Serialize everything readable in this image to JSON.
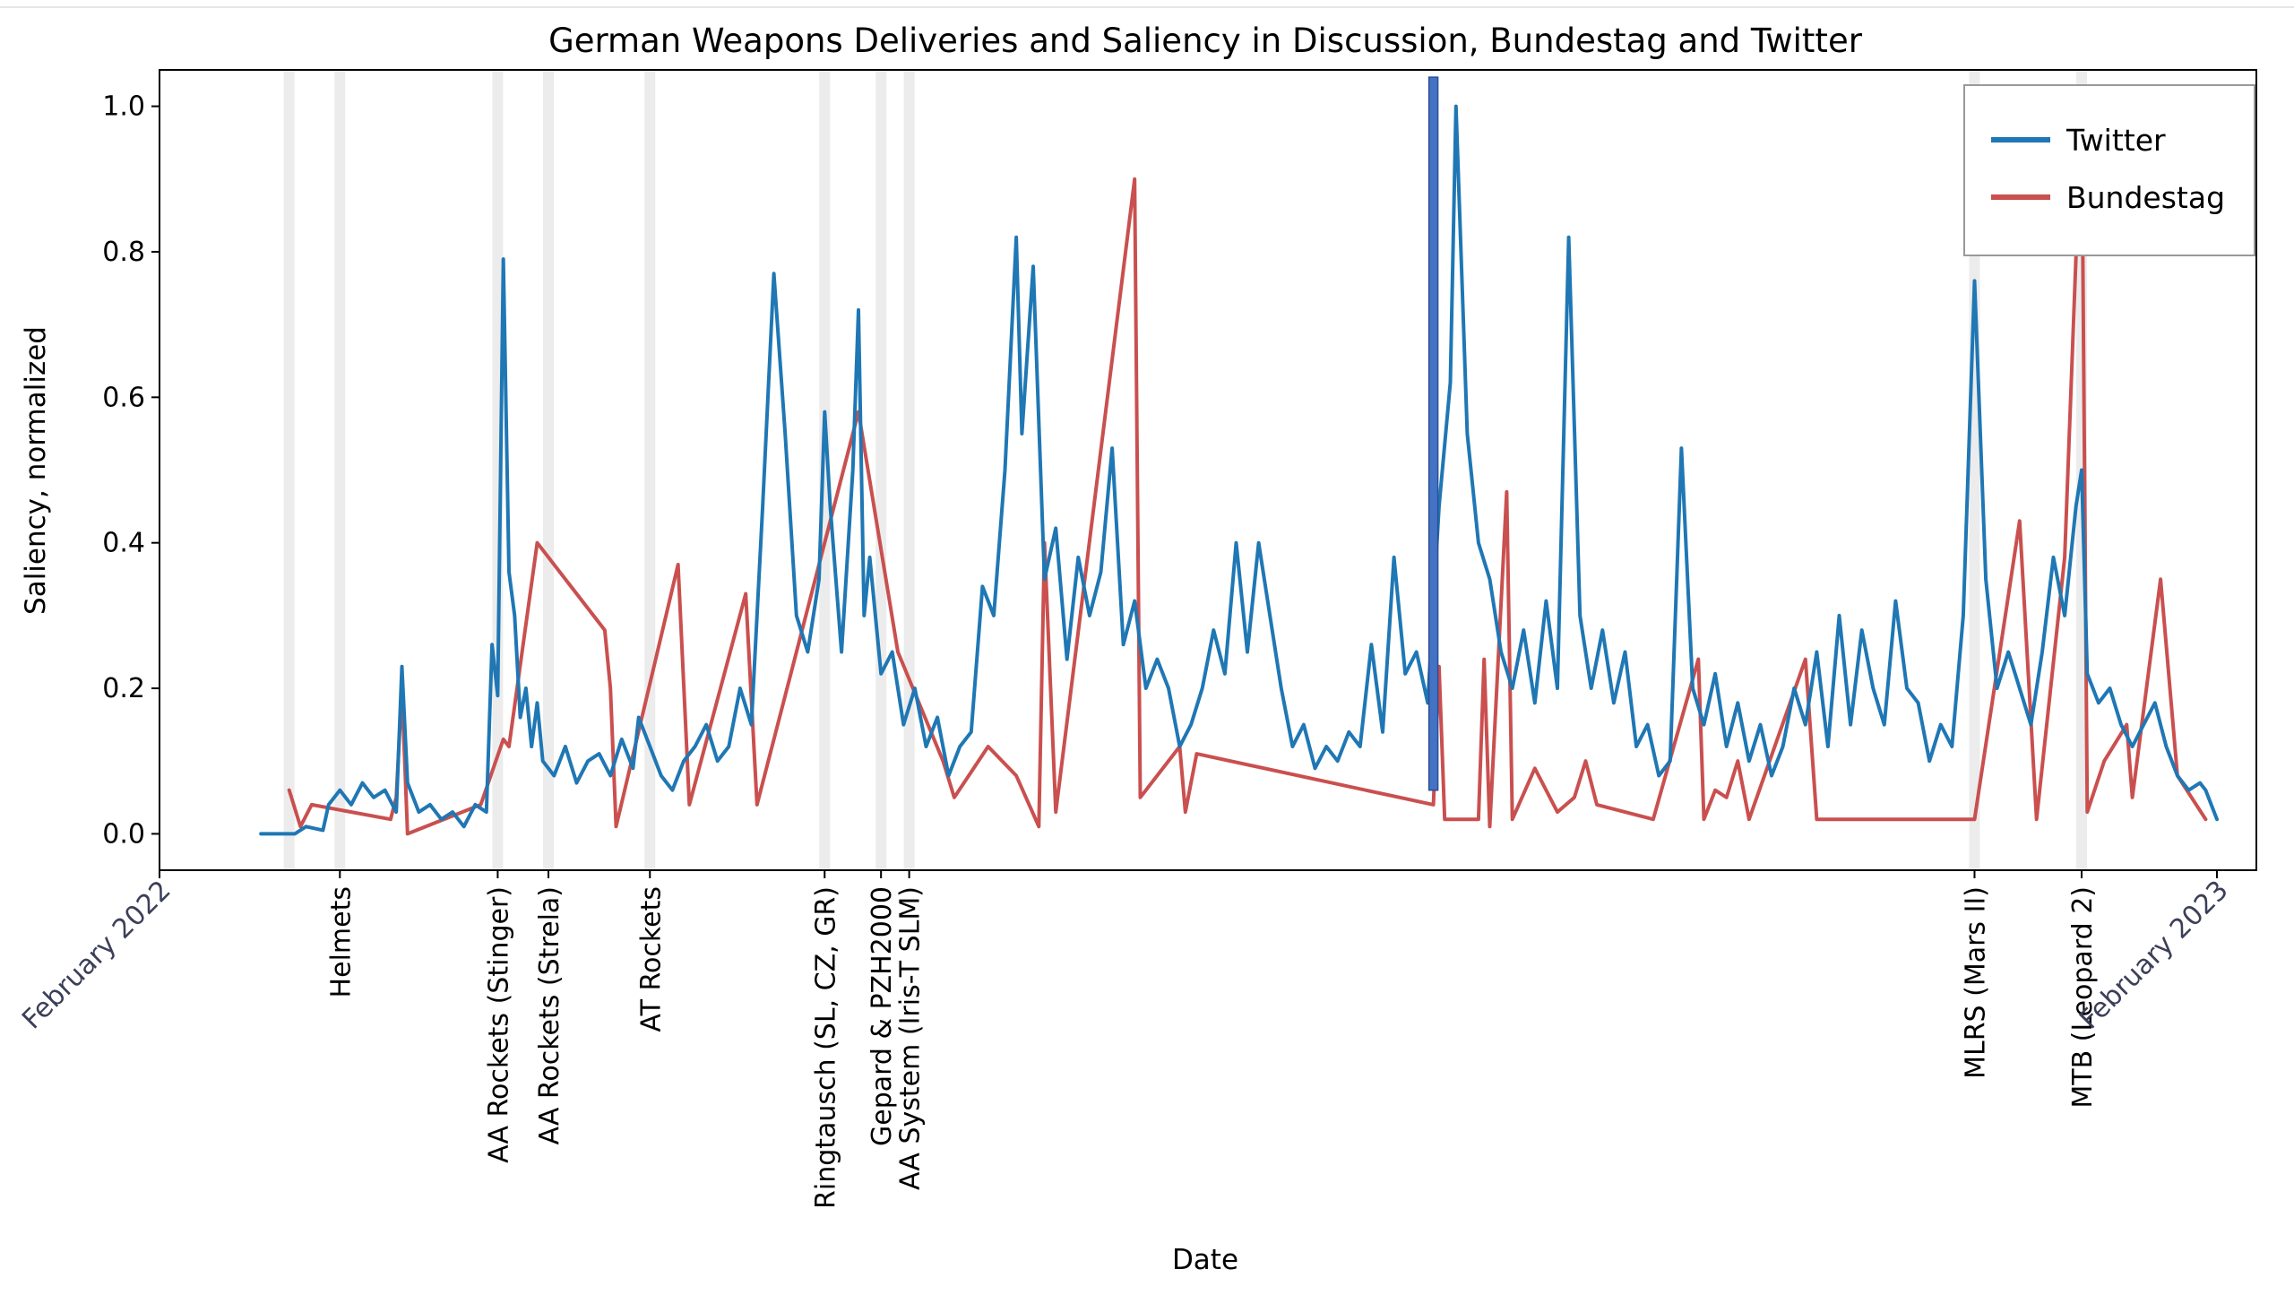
{
  "chart_data": {
    "type": "line",
    "title": "German Weapons Deliveries and Saliency in Discussion, Bundestag and Twitter",
    "xlabel": "Date",
    "ylabel": "Saliency, normalized",
    "ylim": [
      -0.05,
      1.05
    ],
    "yticks": [
      "0.0",
      "0.2",
      "0.4",
      "0.6",
      "0.8",
      "1.0"
    ],
    "x_range": [
      "2022-02-01",
      "2023-02-08"
    ],
    "date_ticks": [
      {
        "label": "February 2022",
        "date": "2022-02-01"
      },
      {
        "label": "February 2023",
        "date": "2023-02-01"
      }
    ],
    "grid": false,
    "legend_position": "top-right",
    "events": [
      {
        "label": "",
        "date": "2022-02-24"
      },
      {
        "label": "Helmets",
        "date": "2022-03-05"
      },
      {
        "label": "AA Rockets (Stinger)",
        "date": "2022-04-02"
      },
      {
        "label": "AA Rockets (Strela)",
        "date": "2022-04-11"
      },
      {
        "label": "AT Rockets",
        "date": "2022-04-29"
      },
      {
        "label": "Ringtausch (SL, CZ, GR)",
        "date": "2022-05-30"
      },
      {
        "label": "Gepard & PZH2000",
        "date": "2022-06-09"
      },
      {
        "label": "AA System (Iris-T SLM)",
        "date": "2022-06-14"
      },
      {
        "label": "MLRS (Mars II)",
        "date": "2022-12-20"
      },
      {
        "label": "MTB (Leopard 2)",
        "date": "2023-01-08"
      }
    ],
    "highlight_bar": {
      "date": "2022-09-15",
      "color": "#4472c4"
    },
    "series": [
      {
        "name": "Twitter",
        "color": "#1f77b4",
        "points": [
          [
            "2022-02-19",
            0.0
          ],
          [
            "2022-02-25",
            0.0
          ],
          [
            "2022-02-27",
            0.01
          ],
          [
            "2022-03-02",
            0.005
          ],
          [
            "2022-03-03",
            0.04
          ],
          [
            "2022-03-05",
            0.06
          ],
          [
            "2022-03-07",
            0.04
          ],
          [
            "2022-03-09",
            0.07
          ],
          [
            "2022-03-11",
            0.05
          ],
          [
            "2022-03-13",
            0.06
          ],
          [
            "2022-03-15",
            0.03
          ],
          [
            "2022-03-16",
            0.23
          ],
          [
            "2022-03-17",
            0.07
          ],
          [
            "2022-03-19",
            0.03
          ],
          [
            "2022-03-21",
            0.04
          ],
          [
            "2022-03-23",
            0.02
          ],
          [
            "2022-03-25",
            0.03
          ],
          [
            "2022-03-27",
            0.01
          ],
          [
            "2022-03-29",
            0.04
          ],
          [
            "2022-03-31",
            0.03
          ],
          [
            "2022-04-01",
            0.26
          ],
          [
            "2022-04-02",
            0.19
          ],
          [
            "2022-04-03",
            0.79
          ],
          [
            "2022-04-04",
            0.36
          ],
          [
            "2022-04-05",
            0.3
          ],
          [
            "2022-04-06",
            0.16
          ],
          [
            "2022-04-07",
            0.2
          ],
          [
            "2022-04-08",
            0.12
          ],
          [
            "2022-04-09",
            0.18
          ],
          [
            "2022-04-10",
            0.1
          ],
          [
            "2022-04-12",
            0.08
          ],
          [
            "2022-04-14",
            0.12
          ],
          [
            "2022-04-16",
            0.07
          ],
          [
            "2022-04-18",
            0.1
          ],
          [
            "2022-04-20",
            0.11
          ],
          [
            "2022-04-22",
            0.08
          ],
          [
            "2022-04-24",
            0.13
          ],
          [
            "2022-04-26",
            0.09
          ],
          [
            "2022-04-27",
            0.16
          ],
          [
            "2022-04-29",
            0.12
          ],
          [
            "2022-05-01",
            0.08
          ],
          [
            "2022-05-03",
            0.06
          ],
          [
            "2022-05-05",
            0.1
          ],
          [
            "2022-05-07",
            0.12
          ],
          [
            "2022-05-09",
            0.15
          ],
          [
            "2022-05-11",
            0.1
          ],
          [
            "2022-05-13",
            0.12
          ],
          [
            "2022-05-15",
            0.2
          ],
          [
            "2022-05-17",
            0.15
          ],
          [
            "2022-05-19",
            0.45
          ],
          [
            "2022-05-21",
            0.77
          ],
          [
            "2022-05-23",
            0.55
          ],
          [
            "2022-05-25",
            0.3
          ],
          [
            "2022-05-27",
            0.25
          ],
          [
            "2022-05-29",
            0.35
          ],
          [
            "2022-05-30",
            0.58
          ],
          [
            "2022-05-31",
            0.45
          ],
          [
            "2022-06-02",
            0.25
          ],
          [
            "2022-06-04",
            0.5
          ],
          [
            "2022-06-05",
            0.72
          ],
          [
            "2022-06-06",
            0.3
          ],
          [
            "2022-06-07",
            0.38
          ],
          [
            "2022-06-09",
            0.22
          ],
          [
            "2022-06-11",
            0.25
          ],
          [
            "2022-06-13",
            0.15
          ],
          [
            "2022-06-15",
            0.2
          ],
          [
            "2022-06-17",
            0.12
          ],
          [
            "2022-06-19",
            0.16
          ],
          [
            "2022-06-21",
            0.08
          ],
          [
            "2022-06-23",
            0.12
          ],
          [
            "2022-06-25",
            0.14
          ],
          [
            "2022-06-27",
            0.34
          ],
          [
            "2022-06-29",
            0.3
          ],
          [
            "2022-07-01",
            0.5
          ],
          [
            "2022-07-03",
            0.82
          ],
          [
            "2022-07-04",
            0.55
          ],
          [
            "2022-07-06",
            0.78
          ],
          [
            "2022-07-08",
            0.35
          ],
          [
            "2022-07-10",
            0.42
          ],
          [
            "2022-07-12",
            0.24
          ],
          [
            "2022-07-14",
            0.38
          ],
          [
            "2022-07-16",
            0.3
          ],
          [
            "2022-07-18",
            0.36
          ],
          [
            "2022-07-20",
            0.53
          ],
          [
            "2022-07-22",
            0.26
          ],
          [
            "2022-07-24",
            0.32
          ],
          [
            "2022-07-26",
            0.2
          ],
          [
            "2022-07-28",
            0.24
          ],
          [
            "2022-07-30",
            0.2
          ],
          [
            "2022-08-01",
            0.12
          ],
          [
            "2022-08-03",
            0.15
          ],
          [
            "2022-08-05",
            0.2
          ],
          [
            "2022-08-07",
            0.28
          ],
          [
            "2022-08-09",
            0.22
          ],
          [
            "2022-08-11",
            0.4
          ],
          [
            "2022-08-13",
            0.25
          ],
          [
            "2022-08-15",
            0.4
          ],
          [
            "2022-08-17",
            0.3
          ],
          [
            "2022-08-19",
            0.2
          ],
          [
            "2022-08-21",
            0.12
          ],
          [
            "2022-08-23",
            0.15
          ],
          [
            "2022-08-25",
            0.09
          ],
          [
            "2022-08-27",
            0.12
          ],
          [
            "2022-08-29",
            0.1
          ],
          [
            "2022-08-31",
            0.14
          ],
          [
            "2022-09-02",
            0.12
          ],
          [
            "2022-09-04",
            0.26
          ],
          [
            "2022-09-06",
            0.14
          ],
          [
            "2022-09-08",
            0.38
          ],
          [
            "2022-09-10",
            0.22
          ],
          [
            "2022-09-12",
            0.25
          ],
          [
            "2022-09-14",
            0.18
          ],
          [
            "2022-09-16",
            0.45
          ],
          [
            "2022-09-18",
            0.62
          ],
          [
            "2022-09-19",
            1.0
          ],
          [
            "2022-09-21",
            0.55
          ],
          [
            "2022-09-23",
            0.4
          ],
          [
            "2022-09-25",
            0.35
          ],
          [
            "2022-09-27",
            0.25
          ],
          [
            "2022-09-29",
            0.2
          ],
          [
            "2022-10-01",
            0.28
          ],
          [
            "2022-10-03",
            0.18
          ],
          [
            "2022-10-05",
            0.32
          ],
          [
            "2022-10-07",
            0.2
          ],
          [
            "2022-10-09",
            0.82
          ],
          [
            "2022-10-11",
            0.3
          ],
          [
            "2022-10-13",
            0.2
          ],
          [
            "2022-10-15",
            0.28
          ],
          [
            "2022-10-17",
            0.18
          ],
          [
            "2022-10-19",
            0.25
          ],
          [
            "2022-10-21",
            0.12
          ],
          [
            "2022-10-23",
            0.15
          ],
          [
            "2022-10-25",
            0.08
          ],
          [
            "2022-10-27",
            0.1
          ],
          [
            "2022-10-29",
            0.53
          ],
          [
            "2022-10-31",
            0.2
          ],
          [
            "2022-11-02",
            0.15
          ],
          [
            "2022-11-04",
            0.22
          ],
          [
            "2022-11-06",
            0.12
          ],
          [
            "2022-11-08",
            0.18
          ],
          [
            "2022-11-10",
            0.1
          ],
          [
            "2022-11-12",
            0.15
          ],
          [
            "2022-11-14",
            0.08
          ],
          [
            "2022-11-16",
            0.12
          ],
          [
            "2022-11-18",
            0.2
          ],
          [
            "2022-11-20",
            0.15
          ],
          [
            "2022-11-22",
            0.25
          ],
          [
            "2022-11-24",
            0.12
          ],
          [
            "2022-11-26",
            0.3
          ],
          [
            "2022-11-28",
            0.15
          ],
          [
            "2022-11-30",
            0.28
          ],
          [
            "2022-12-02",
            0.2
          ],
          [
            "2022-12-04",
            0.15
          ],
          [
            "2022-12-06",
            0.32
          ],
          [
            "2022-12-08",
            0.2
          ],
          [
            "2022-12-10",
            0.18
          ],
          [
            "2022-12-12",
            0.1
          ],
          [
            "2022-12-14",
            0.15
          ],
          [
            "2022-12-16",
            0.12
          ],
          [
            "2022-12-18",
            0.3
          ],
          [
            "2022-12-20",
            0.76
          ],
          [
            "2022-12-22",
            0.35
          ],
          [
            "2022-12-24",
            0.2
          ],
          [
            "2022-12-26",
            0.25
          ],
          [
            "2022-12-28",
            0.2
          ],
          [
            "2022-12-30",
            0.15
          ],
          [
            "2023-01-01",
            0.25
          ],
          [
            "2023-01-03",
            0.38
          ],
          [
            "2023-01-05",
            0.3
          ],
          [
            "2023-01-07",
            0.45
          ],
          [
            "2023-01-08",
            0.5
          ],
          [
            "2023-01-09",
            0.22
          ],
          [
            "2023-01-11",
            0.18
          ],
          [
            "2023-01-13",
            0.2
          ],
          [
            "2023-01-15",
            0.15
          ],
          [
            "2023-01-17",
            0.12
          ],
          [
            "2023-01-19",
            0.15
          ],
          [
            "2023-01-21",
            0.18
          ],
          [
            "2023-01-23",
            0.12
          ],
          [
            "2023-01-25",
            0.08
          ],
          [
            "2023-01-27",
            0.06
          ],
          [
            "2023-01-29",
            0.07
          ],
          [
            "2023-01-30",
            0.06
          ],
          [
            "2023-02-01",
            0.02
          ]
        ]
      },
      {
        "name": "Bundestag",
        "color": "#c9504f",
        "points": [
          [
            "2022-02-24",
            0.06
          ],
          [
            "2022-02-26",
            0.01
          ],
          [
            "2022-02-28",
            0.04
          ],
          [
            "2022-03-14",
            0.02
          ],
          [
            "2022-03-15",
            0.05
          ],
          [
            "2022-03-16",
            0.2
          ],
          [
            "2022-03-17",
            0.0
          ],
          [
            "2022-03-30",
            0.04
          ],
          [
            "2022-04-03",
            0.13
          ],
          [
            "2022-04-04",
            0.12
          ],
          [
            "2022-04-09",
            0.4
          ],
          [
            "2022-04-21",
            0.28
          ],
          [
            "2022-04-22",
            0.2
          ],
          [
            "2022-04-23",
            0.01
          ],
          [
            "2022-05-04",
            0.37
          ],
          [
            "2022-05-06",
            0.04
          ],
          [
            "2022-05-16",
            0.33
          ],
          [
            "2022-05-18",
            0.04
          ],
          [
            "2022-06-05",
            0.58
          ],
          [
            "2022-06-12",
            0.25
          ],
          [
            "2022-06-20",
            0.1
          ],
          [
            "2022-06-22",
            0.05
          ],
          [
            "2022-06-28",
            0.12
          ],
          [
            "2022-07-03",
            0.08
          ],
          [
            "2022-07-07",
            0.01
          ],
          [
            "2022-07-08",
            0.4
          ],
          [
            "2022-07-10",
            0.03
          ],
          [
            "2022-07-24",
            0.9
          ],
          [
            "2022-07-25",
            0.05
          ],
          [
            "2022-08-01",
            0.12
          ],
          [
            "2022-08-02",
            0.03
          ],
          [
            "2022-08-04",
            0.11
          ],
          [
            "2022-09-15",
            0.04
          ],
          [
            "2022-09-16",
            0.23
          ],
          [
            "2022-09-17",
            0.02
          ],
          [
            "2022-09-23",
            0.02
          ],
          [
            "2022-09-24",
            0.24
          ],
          [
            "2022-09-25",
            0.01
          ],
          [
            "2022-09-28",
            0.47
          ],
          [
            "2022-09-29",
            0.02
          ],
          [
            "2022-10-03",
            0.09
          ],
          [
            "2022-10-07",
            0.03
          ],
          [
            "2022-10-10",
            0.05
          ],
          [
            "2022-10-12",
            0.1
          ],
          [
            "2022-10-14",
            0.04
          ],
          [
            "2022-10-24",
            0.02
          ],
          [
            "2022-11-01",
            0.24
          ],
          [
            "2022-11-02",
            0.02
          ],
          [
            "2022-11-04",
            0.06
          ],
          [
            "2022-11-06",
            0.05
          ],
          [
            "2022-11-08",
            0.1
          ],
          [
            "2022-11-10",
            0.02
          ],
          [
            "2022-11-20",
            0.24
          ],
          [
            "2022-11-22",
            0.02
          ],
          [
            "2022-12-20",
            0.02
          ],
          [
            "2022-12-28",
            0.43
          ],
          [
            "2022-12-31",
            0.02
          ],
          [
            "2023-01-05",
            0.38
          ],
          [
            "2023-01-08",
            1.0
          ],
          [
            "2023-01-09",
            0.03
          ],
          [
            "2023-01-12",
            0.1
          ],
          [
            "2023-01-16",
            0.15
          ],
          [
            "2023-01-17",
            0.05
          ],
          [
            "2023-01-22",
            0.35
          ],
          [
            "2023-01-25",
            0.08
          ],
          [
            "2023-01-30",
            0.02
          ]
        ]
      }
    ]
  }
}
